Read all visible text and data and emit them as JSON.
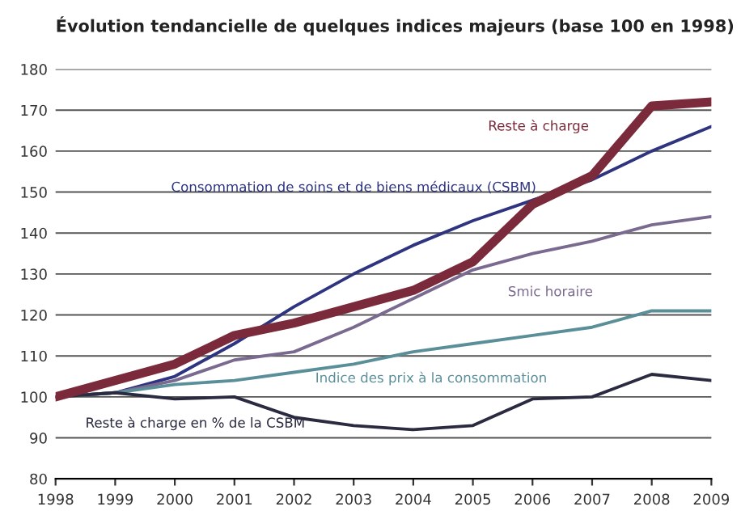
{
  "chart_data": {
    "type": "line",
    "title": "Évolution tendancielle de quelques indices majeurs (base 100 en 1998)",
    "x": [
      1998,
      1999,
      2000,
      2001,
      2002,
      2003,
      2004,
      2005,
      2006,
      2007,
      2008,
      2009
    ],
    "series": [
      {
        "name": "Consommation de soins et de biens médicaux (CSBM)",
        "color": "#2e3480",
        "values": [
          100,
          101,
          105,
          113,
          122,
          130,
          137,
          143,
          148,
          153,
          160,
          166
        ]
      },
      {
        "name": "Smic horaire",
        "color": "#7a6a90",
        "values": [
          100,
          101,
          104,
          109,
          111,
          117,
          124,
          131,
          135,
          138,
          142,
          144
        ]
      },
      {
        "name": "Indice des prix à la consommation",
        "color": "#5a8f9a",
        "values": [
          100,
          101,
          103,
          104,
          106,
          108,
          111,
          113,
          115,
          117,
          121,
          121
        ]
      },
      {
        "name": "Reste à charge en % de la CSBM",
        "color": "#2a2a40",
        "values": [
          100,
          101,
          99.5,
          100,
          95,
          93,
          92,
          93,
          99.5,
          100,
          105.5,
          104
        ]
      },
      {
        "name": "Reste à charge",
        "color": "#7a2a3a",
        "values": [
          100,
          104,
          108,
          115,
          118,
          122,
          126,
          133,
          147,
          154,
          171,
          172
        ]
      }
    ],
    "xlim": [
      1998,
      2009
    ],
    "xticks": [
      1998,
      1999,
      2000,
      2001,
      2002,
      2003,
      2004,
      2005,
      2006,
      2007,
      2008,
      2009
    ],
    "ylim": [
      80,
      180
    ],
    "yticks": [
      80,
      90,
      100,
      110,
      120,
      130,
      140,
      150,
      160,
      170,
      180
    ],
    "grid": "y",
    "legend": false,
    "marker": "none",
    "line_style": "solid"
  }
}
